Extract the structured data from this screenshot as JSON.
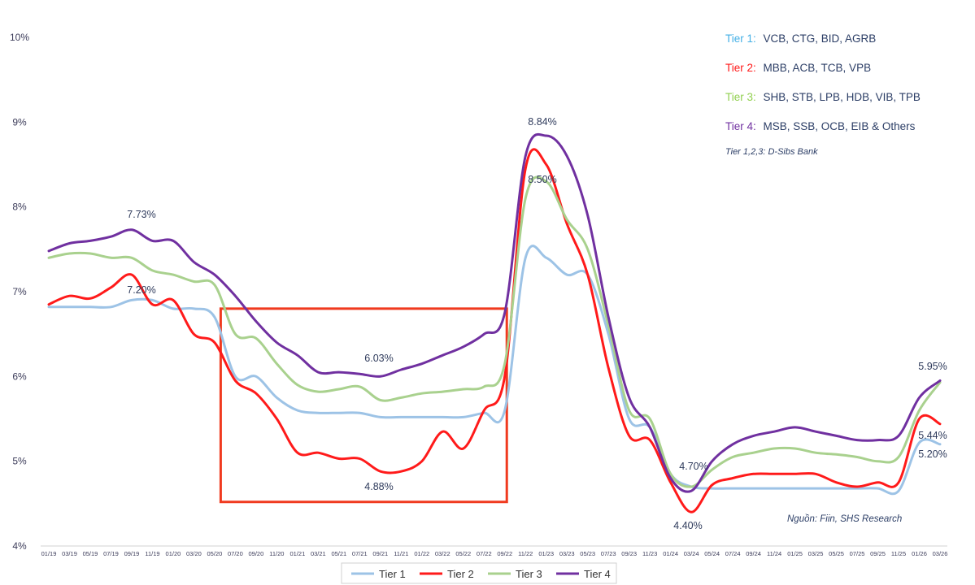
{
  "chart_data": {
    "type": "line",
    "ylim": [
      4,
      10
    ],
    "y_ticks": [
      "4%",
      "5%",
      "6%",
      "7%",
      "8%",
      "9%",
      "10%"
    ],
    "x_tick_labels": [
      "01/19",
      "03/19",
      "05/19",
      "07/19",
      "09/19",
      "11/19",
      "01/20",
      "03/20",
      "05/20",
      "07/20",
      "09/20",
      "11/20",
      "01/21",
      "03/21",
      "05/21",
      "07/21",
      "09/21",
      "11/21",
      "01/22",
      "03/22",
      "05/22",
      "07/22",
      "09/22",
      "11/22",
      "01/23",
      "03/23",
      "05/23",
      "07/23",
      "09/23",
      "11/23",
      "01/24",
      "03/24",
      "05/24",
      "07/24",
      "09/24",
      "11/24",
      "01/25",
      "03/25",
      "05/25",
      "07/25",
      "09/25",
      "11/25",
      "01/26",
      "03/26"
    ],
    "series": [
      {
        "name": "Tier 1",
        "color": "#9dc3e6",
        "values": [
          6.82,
          6.82,
          6.82,
          6.82,
          6.9,
          6.9,
          6.8,
          6.8,
          6.7,
          6.0,
          6.0,
          5.75,
          5.6,
          5.57,
          5.57,
          5.57,
          5.52,
          5.52,
          5.52,
          5.52,
          5.52,
          5.57,
          5.6,
          7.4,
          7.4,
          7.2,
          7.2,
          6.5,
          5.5,
          5.4,
          4.85,
          4.7,
          4.68,
          4.68,
          4.68,
          4.68,
          4.68,
          4.68,
          4.68,
          4.68,
          4.68,
          4.65,
          5.22,
          5.2
        ]
      },
      {
        "name": "Tier 2",
        "color": "#ff1a1a",
        "values": [
          6.85,
          6.95,
          6.92,
          7.05,
          7.2,
          6.85,
          6.9,
          6.5,
          6.4,
          5.95,
          5.8,
          5.5,
          5.1,
          5.1,
          5.03,
          5.03,
          4.88,
          4.88,
          5.0,
          5.35,
          5.15,
          5.6,
          6.0,
          8.45,
          8.5,
          7.8,
          7.2,
          6.1,
          5.3,
          5.25,
          4.75,
          4.4,
          4.72,
          4.8,
          4.85,
          4.85,
          4.85,
          4.85,
          4.75,
          4.7,
          4.75,
          4.75,
          5.5,
          5.44
        ]
      },
      {
        "name": "Tier 3",
        "color": "#a9d18e",
        "values": [
          7.4,
          7.45,
          7.45,
          7.4,
          7.4,
          7.25,
          7.2,
          7.12,
          7.08,
          6.5,
          6.45,
          6.15,
          5.9,
          5.82,
          5.85,
          5.88,
          5.72,
          5.75,
          5.8,
          5.82,
          5.85,
          5.88,
          6.15,
          8.1,
          8.3,
          7.85,
          7.5,
          6.6,
          5.6,
          5.5,
          4.85,
          4.7,
          4.9,
          5.05,
          5.1,
          5.15,
          5.15,
          5.1,
          5.08,
          5.05,
          5.0,
          5.05,
          5.6,
          5.93
        ]
      },
      {
        "name": "Tier 4",
        "color": "#7030a0",
        "values": [
          7.48,
          7.57,
          7.6,
          7.65,
          7.73,
          7.6,
          7.6,
          7.35,
          7.2,
          6.95,
          6.65,
          6.4,
          6.25,
          6.05,
          6.05,
          6.03,
          6.0,
          6.08,
          6.15,
          6.25,
          6.35,
          6.5,
          6.75,
          8.6,
          8.84,
          8.6,
          7.9,
          6.7,
          5.75,
          5.4,
          4.8,
          4.65,
          5.0,
          5.2,
          5.3,
          5.35,
          5.4,
          5.35,
          5.3,
          5.25,
          5.25,
          5.3,
          5.75,
          5.95
        ]
      }
    ],
    "annotations": [
      "7.73%",
      "7.20%",
      "6.03%",
      "4.88%",
      "8.84%",
      "8.50%",
      "4.70%",
      "4.40%",
      "5.95%",
      "5.44%",
      "5.20%"
    ],
    "legend_items": [
      {
        "tier": "Tier 1:",
        "banks": "VCB, CTG, BID, AGRB",
        "color": "#45b0e6"
      },
      {
        "tier": "Tier 2:",
        "banks": "MBB, ACB, TCB, VPB",
        "color": "#ff1a1a"
      },
      {
        "tier": "Tier 3:",
        "banks": "SHB, STB, LPB, HDB, VIB, TPB",
        "color": "#92d050"
      },
      {
        "tier": "Tier 4:",
        "banks": "MSB, SSB, OCB, EIB & Others",
        "color": "#7030a0"
      }
    ],
    "legend_note": "Tier 1,2,3: D-Sibs Bank",
    "source": "Nguồn: Fiin, SHS Research",
    "highlight_box": {
      "from": "07/20",
      "to": "11/22"
    },
    "highlight_color": "#f03a1f"
  }
}
